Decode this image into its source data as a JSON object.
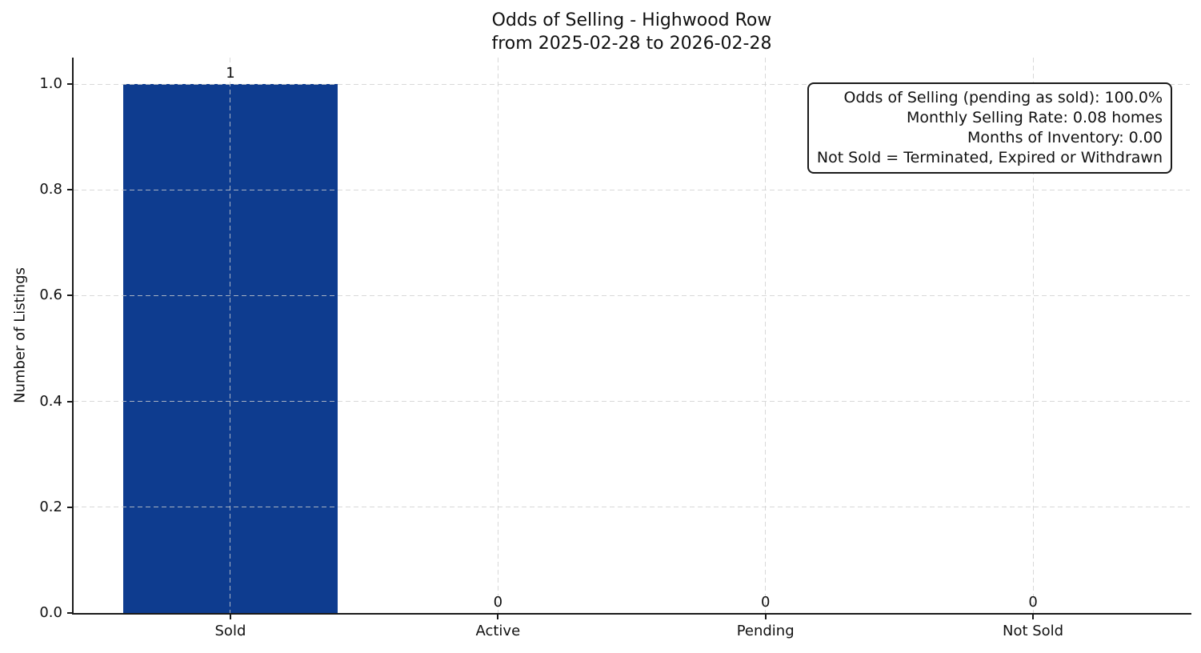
{
  "chart_data": {
    "type": "bar",
    "title": "Odds of Selling - Highwood Row",
    "subtitle": "from 2025-02-28 to 2026-02-28",
    "categories": [
      "Sold",
      "Active",
      "Pending",
      "Not Sold"
    ],
    "values": [
      1,
      0,
      0,
      0
    ],
    "bar_labels": [
      "1",
      "0",
      "0",
      "0"
    ],
    "xlabel": "",
    "ylabel": "Number of Listings",
    "ylim": [
      0,
      1.05
    ],
    "yticks": [
      0,
      0.2,
      0.4,
      0.6,
      0.8,
      1.0
    ],
    "ytick_labels": [
      "0.0",
      "0.2",
      "0.4",
      "0.6",
      "0.8",
      "1.0"
    ],
    "grid": true,
    "grid_style": "dashed",
    "legend": null,
    "bar_color": "#0e3c8f",
    "annotation": {
      "align": "right",
      "lines": [
        "Odds of Selling (pending as sold): 100.0%",
        "Monthly Selling Rate: 0.08 homes",
        "Months of Inventory: 0.00",
        "Not Sold = Terminated, Expired or Withdrawn"
      ]
    }
  }
}
